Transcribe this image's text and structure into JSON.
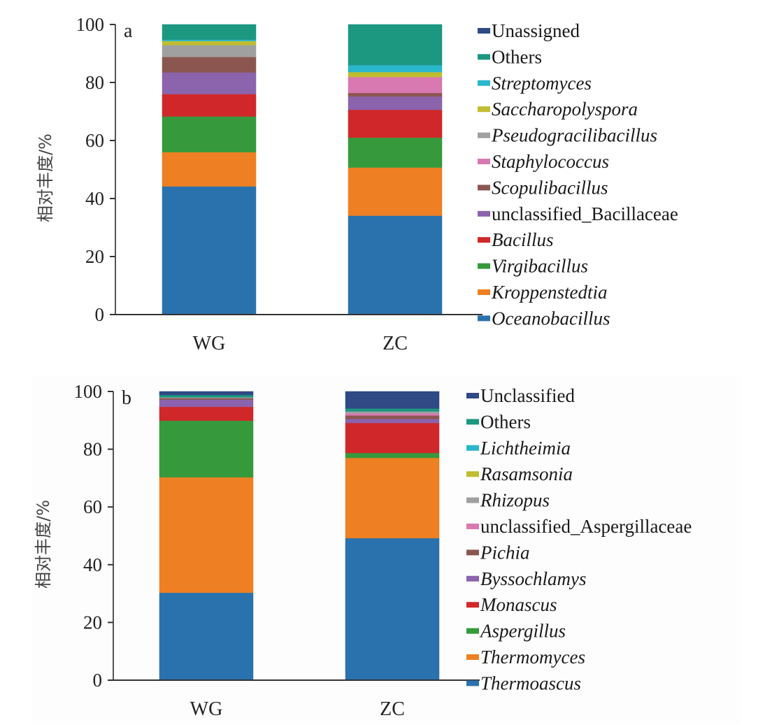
{
  "chart_data": [
    {
      "id": "a",
      "type": "bar",
      "stacked": true,
      "panel_label": "a",
      "title": "",
      "xlabel": "",
      "ylabel": "相对丰度/%",
      "ylim": [
        0,
        100
      ],
      "yticks": [
        0,
        20,
        40,
        60,
        80,
        100
      ],
      "grid": false,
      "legend_position": "right",
      "categories": [
        "WG",
        "ZC"
      ],
      "series": [
        {
          "name": "Oceanobacillus",
          "italic": true,
          "color": "#2a72ad",
          "values": [
            44.2,
            34.1
          ]
        },
        {
          "name": "Kroppenstedtia",
          "italic": true,
          "color": "#ee7f22",
          "values": [
            11.8,
            16.6
          ]
        },
        {
          "name": "Virgibacillus",
          "italic": true,
          "color": "#369a3c",
          "values": [
            12.3,
            10.3
          ]
        },
        {
          "name": "Bacillus",
          "italic": true,
          "color": "#d0282a",
          "values": [
            7.7,
            9.6
          ]
        },
        {
          "name": "unclassified_Bacillaceae",
          "italic": false,
          "color": "#8c63ad",
          "values": [
            7.5,
            4.6
          ]
        },
        {
          "name": "Scopulibacillus",
          "italic": true,
          "color": "#8c5650",
          "values": [
            5.3,
            1.2
          ]
        },
        {
          "name": "Staphylococcus",
          "italic": true,
          "color": "#d879b2",
          "values": [
            0.0,
            5.5
          ]
        },
        {
          "name": "Pseudogracilibacillus",
          "italic": true,
          "color": "#a0a0a0",
          "values": [
            4.1,
            0.0
          ]
        },
        {
          "name": "Saccharopolyspora",
          "italic": true,
          "color": "#c0bd30",
          "values": [
            1.4,
            1.7
          ]
        },
        {
          "name": "Streptomyces",
          "italic": true,
          "color": "#2ab7cc",
          "values": [
            0.5,
            2.4
          ]
        },
        {
          "name": "Others",
          "italic": false,
          "color": "#1c9780",
          "values": [
            5.2,
            14.0
          ]
        },
        {
          "name": "Unassigned",
          "italic": false,
          "color": "#2f4a84",
          "values": [
            0.0,
            0.0
          ]
        }
      ]
    },
    {
      "id": "b",
      "type": "bar",
      "stacked": true,
      "panel_label": "b",
      "title": "",
      "xlabel": "",
      "ylabel": "相对丰度/%",
      "ylim": [
        0,
        100
      ],
      "yticks": [
        0,
        20,
        40,
        60,
        80,
        100
      ],
      "grid": false,
      "legend_position": "right",
      "categories": [
        "WG",
        "ZC"
      ],
      "series": [
        {
          "name": "Thermoascus",
          "italic": true,
          "color": "#2a72ad",
          "values": [
            30.3,
            49.2
          ]
        },
        {
          "name": "Thermomyces",
          "italic": true,
          "color": "#ee7f22",
          "values": [
            40.0,
            27.8
          ]
        },
        {
          "name": "Aspergillus",
          "italic": true,
          "color": "#369a3c",
          "values": [
            19.6,
            1.7
          ]
        },
        {
          "name": "Monascus",
          "italic": true,
          "color": "#d0282a",
          "values": [
            4.8,
            10.4
          ]
        },
        {
          "name": "Byssochlamys",
          "italic": true,
          "color": "#8c63ad",
          "values": [
            2.5,
            1.4
          ]
        },
        {
          "name": "Pichia",
          "italic": true,
          "color": "#8c5650",
          "values": [
            0.5,
            1.2
          ]
        },
        {
          "name": "unclassified_Aspergillaceae",
          "italic": false,
          "color": "#d879b2",
          "values": [
            0.0,
            0.7
          ]
        },
        {
          "name": "Rhizopus",
          "italic": true,
          "color": "#a0a0a0",
          "values": [
            0.3,
            0.7
          ]
        },
        {
          "name": "Rasamsonia",
          "italic": true,
          "color": "#c0bd30",
          "values": [
            0.0,
            0.0
          ]
        },
        {
          "name": "Lichtheimia",
          "italic": true,
          "color": "#2ab7cc",
          "values": [
            0.0,
            0.0
          ]
        },
        {
          "name": "Others",
          "italic": false,
          "color": "#1c9780",
          "values": [
            0.8,
            1.0
          ]
        },
        {
          "name": "Unclassified",
          "italic": false,
          "color": "#2f4a84",
          "values": [
            1.2,
            5.9
          ]
        }
      ]
    }
  ]
}
